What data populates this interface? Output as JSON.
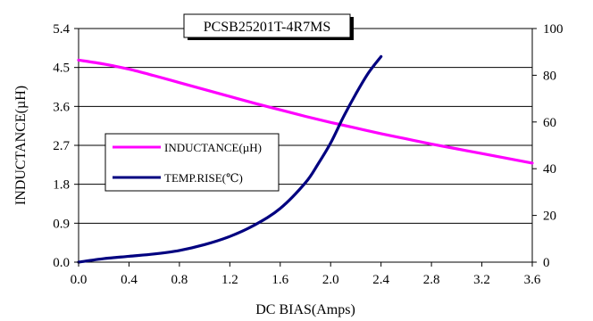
{
  "chart_data": {
    "type": "line",
    "title": "PCSB25201T-4R7MS",
    "xlabel": "DC BIAS(Amps)",
    "ylabel": "INDUCTANCE(µH)",
    "y2label": "",
    "xlim": [
      0,
      3.6
    ],
    "ylim": [
      0,
      5.4
    ],
    "y2lim": [
      0,
      100
    ],
    "x_ticks": [
      "0.0",
      "0.4",
      "0.8",
      "1.2",
      "1.6",
      "2.0",
      "2.4",
      "2.8",
      "3.2",
      "3.6"
    ],
    "y_ticks": [
      "0.0",
      "0.9",
      "1.8",
      "2.7",
      "3.6",
      "4.5",
      "5.4"
    ],
    "y2_ticks": [
      "0",
      "20",
      "40",
      "60",
      "80",
      "100"
    ],
    "grid": "horizontal",
    "legend_position": "center-left",
    "series": [
      {
        "name": "INDUCTANCE(µH)",
        "axis": "left",
        "color": "#ff00ff",
        "x": [
          0.0,
          0.2,
          0.4,
          0.6,
          0.8,
          1.0,
          1.2,
          1.4,
          1.6,
          1.8,
          2.0,
          2.2,
          2.4,
          2.6,
          2.8,
          3.0,
          3.2,
          3.4,
          3.6
        ],
        "y": [
          4.67,
          4.58,
          4.46,
          4.31,
          4.15,
          3.99,
          3.83,
          3.67,
          3.52,
          3.37,
          3.23,
          3.1,
          2.97,
          2.85,
          2.73,
          2.62,
          2.51,
          2.4,
          2.29
        ]
      },
      {
        "name": "TEMP.RISE(℃)",
        "axis": "right",
        "color": "#000080",
        "x": [
          0.0,
          0.2,
          0.4,
          0.6,
          0.8,
          1.0,
          1.2,
          1.4,
          1.6,
          1.8,
          1.9,
          2.0,
          2.1,
          2.2,
          2.3,
          2.4
        ],
        "y": [
          0,
          1.5,
          2.5,
          3.5,
          5,
          7.5,
          11,
          16,
          23,
          34,
          42,
          51,
          62,
          72,
          81,
          88
        ]
      }
    ]
  }
}
